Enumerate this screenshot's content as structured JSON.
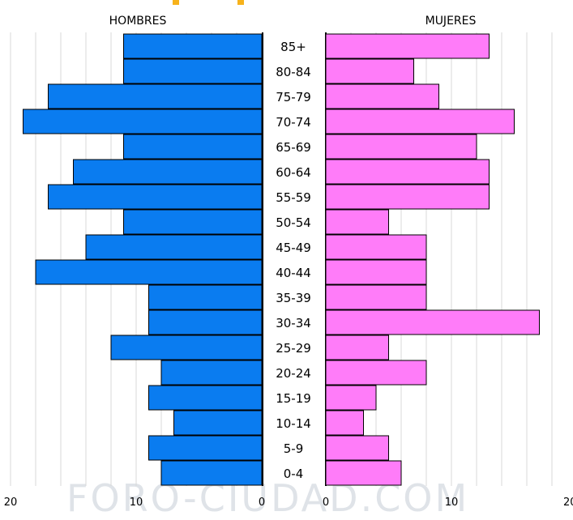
{
  "chart_data": {
    "type": "bar",
    "subtype": "population-pyramid",
    "categories": [
      "85+",
      "80-84",
      "75-79",
      "70-74",
      "65-69",
      "60-64",
      "55-59",
      "50-54",
      "45-49",
      "40-44",
      "35-39",
      "30-34",
      "25-29",
      "20-24",
      "15-19",
      "10-14",
      "5-9",
      "0-4"
    ],
    "series": [
      {
        "name": "HOMBRES",
        "side": "left",
        "color": "#0a7cf0",
        "values": [
          11,
          11,
          17,
          19,
          11,
          15,
          17,
          11,
          14,
          18,
          9,
          9,
          12,
          8,
          9,
          7,
          9,
          8
        ]
      },
      {
        "name": "MUJERES",
        "side": "right",
        "color": "#ff7cf9",
        "values": [
          13,
          7,
          9,
          15,
          12,
          13,
          13,
          5,
          8,
          8,
          8,
          17,
          5,
          8,
          4,
          3,
          5,
          6
        ]
      }
    ],
    "xlim": [
      0,
      20
    ],
    "x_ticks_left": [
      "20",
      "10",
      "0"
    ],
    "x_ticks_right": [
      "0",
      "10",
      "20"
    ],
    "grid": true,
    "gridline_step": 2
  },
  "watermark": "FORO-CIUDAD.COM"
}
